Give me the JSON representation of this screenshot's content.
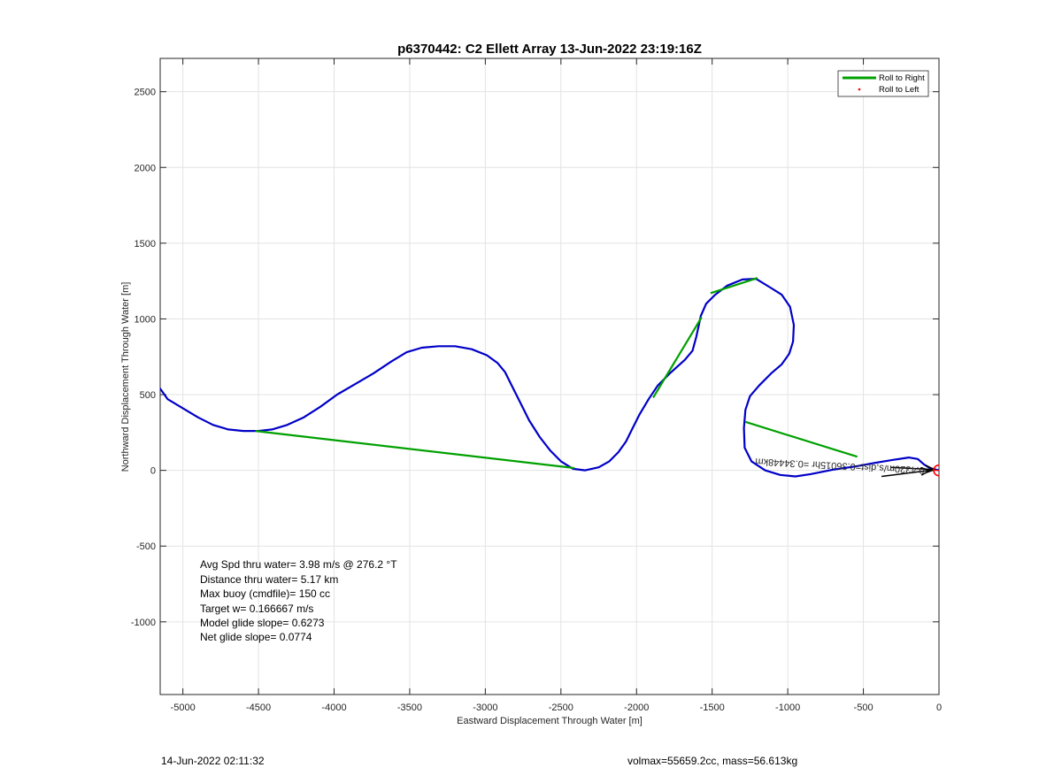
{
  "chart_data": {
    "type": "line",
    "title": "p6370442: C2 Ellett Array 13-Jun-2022 23:19:16Z",
    "xlabel": "Eastward Displacement Through Water [m]",
    "ylabel": "Northward Displacement Through Water [m]",
    "xlim": [
      -5150,
      0
    ],
    "ylim": [
      -1480,
      2720
    ],
    "xticks": [
      -5000,
      -4500,
      -4000,
      -3500,
      -3000,
      -2500,
      -2000,
      -1500,
      -1000,
      -500,
      0
    ],
    "yticks": [
      -1000,
      -500,
      0,
      500,
      1000,
      1500,
      2000,
      2500
    ],
    "grid": true,
    "legend_position": "top-right",
    "legend": [
      {
        "label": "Roll to Right",
        "color": "#00a000"
      },
      {
        "label": "Roll to Left",
        "color": "#ff0000"
      }
    ],
    "series": [
      {
        "name": "track",
        "color": "#0000c8",
        "points": [
          [
            0,
            0
          ],
          [
            -60,
            15
          ],
          [
            -100,
            40
          ],
          [
            -140,
            75
          ],
          [
            -200,
            85
          ],
          [
            -300,
            70
          ],
          [
            -420,
            50
          ],
          [
            -560,
            25
          ],
          [
            -700,
            5
          ],
          [
            -850,
            -25
          ],
          [
            -950,
            -40
          ],
          [
            -1050,
            -30
          ],
          [
            -1150,
            0
          ],
          [
            -1240,
            60
          ],
          [
            -1285,
            150
          ],
          [
            -1290,
            280
          ],
          [
            -1280,
            400
          ],
          [
            -1250,
            490
          ],
          [
            -1190,
            560
          ],
          [
            -1110,
            640
          ],
          [
            -1040,
            700
          ],
          [
            -990,
            770
          ],
          [
            -965,
            850
          ],
          [
            -960,
            960
          ],
          [
            -985,
            1080
          ],
          [
            -1040,
            1160
          ],
          [
            -1120,
            1210
          ],
          [
            -1210,
            1265
          ],
          [
            -1300,
            1260
          ],
          [
            -1400,
            1220
          ],
          [
            -1480,
            1160
          ],
          [
            -1540,
            1100
          ],
          [
            -1575,
            1020
          ],
          [
            -1590,
            950
          ],
          [
            -1605,
            880
          ],
          [
            -1630,
            790
          ],
          [
            -1680,
            730
          ],
          [
            -1780,
            640
          ],
          [
            -1860,
            560
          ],
          [
            -1920,
            470
          ],
          [
            -1980,
            370
          ],
          [
            -2030,
            270
          ],
          [
            -2070,
            190
          ],
          [
            -2120,
            120
          ],
          [
            -2180,
            60
          ],
          [
            -2250,
            20
          ],
          [
            -2340,
            0
          ],
          [
            -2420,
            10
          ],
          [
            -2500,
            60
          ],
          [
            -2570,
            130
          ],
          [
            -2640,
            220
          ],
          [
            -2710,
            330
          ],
          [
            -2780,
            470
          ],
          [
            -2830,
            570
          ],
          [
            -2870,
            650
          ],
          [
            -2920,
            710
          ],
          [
            -2990,
            760
          ],
          [
            -3090,
            800
          ],
          [
            -3200,
            820
          ],
          [
            -3310,
            820
          ],
          [
            -3420,
            810
          ],
          [
            -3520,
            780
          ],
          [
            -3620,
            720
          ],
          [
            -3740,
            640
          ],
          [
            -3860,
            570
          ],
          [
            -3980,
            500
          ],
          [
            -4090,
            420
          ],
          [
            -4200,
            350
          ],
          [
            -4310,
            300
          ],
          [
            -4410,
            270
          ],
          [
            -4500,
            260
          ],
          [
            -4600,
            260
          ],
          [
            -4700,
            270
          ],
          [
            -4800,
            300
          ],
          [
            -4900,
            350
          ],
          [
            -5000,
            410
          ],
          [
            -5100,
            470
          ],
          [
            -5150,
            540
          ]
        ]
      },
      {
        "name": "Roll to Right",
        "color": "#00a000",
        "segments": [
          [
            [
              -4520,
              260
            ],
            [
              -2410,
              15
            ]
          ],
          [
            [
              -1890,
              480
            ],
            [
              -1570,
              1010
            ]
          ],
          [
            [
              -1510,
              1170
            ],
            [
              -1200,
              1270
            ]
          ],
          [
            [
              -1280,
              320
            ],
            [
              -540,
              90
            ]
          ]
        ]
      }
    ],
    "annotations": {
      "rotated_text": "0.4320m/s,dist=0.36015hr =0.34448km",
      "arrows": [
        {
          "from": [
            -320,
            20
          ],
          "to": [
            -30,
            5
          ]
        },
        {
          "from": [
            -380,
            -40
          ],
          "to": [
            -60,
            0
          ]
        }
      ]
    },
    "marker": {
      "x": 0,
      "y": 0,
      "color": "#ff0000"
    }
  },
  "stats": [
    "Avg Spd thru water=  3.98 m/s @ 276.2 °T",
    "Distance thru water=  5.17 km",
    "Max buoy (cmdfile)= 150 cc",
    "Target w= 0.166667 m/s",
    "Model glide slope= 0.6273",
    "Net glide slope= 0.0774"
  ],
  "footer": {
    "left": "14-Jun-2022 02:11:32",
    "right": "volmax=55659.2cc, mass=56.613kg"
  }
}
